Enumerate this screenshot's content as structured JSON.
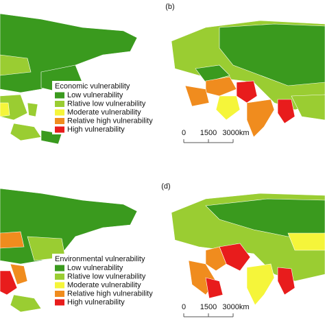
{
  "panels": [
    {
      "label": "(b)",
      "legend": {
        "title": "Economic vulnerability",
        "items": [
          {
            "name": "Low vulnerability",
            "color": "#3a9a1e"
          },
          {
            "name": "Rlative low vulnerability",
            "color": "#9acd32"
          },
          {
            "name": "Moderate vulnerability",
            "color": "#f5f53a"
          },
          {
            "name": "Relative high vulnerability",
            "color": "#f08c1e"
          },
          {
            "name": "High vulnerability",
            "color": "#e81c1c"
          }
        ]
      },
      "scale": [
        "0",
        "1500",
        "3000km"
      ]
    },
    {
      "label": "(d)",
      "legend": {
        "title": "Environmental vulnerability",
        "items": [
          {
            "name": "Low vulnerability",
            "color": "#3a9a1e"
          },
          {
            "name": "Rlative low vulnerability",
            "color": "#9acd32"
          },
          {
            "name": "Moderate vulnerability",
            "color": "#f5f53a"
          },
          {
            "name": "Relative high vulnerability",
            "color": "#f08c1e"
          },
          {
            "name": "High vulnerability",
            "color": "#e81c1c"
          }
        ]
      },
      "scale": [
        "0",
        "1500",
        "3000km"
      ]
    }
  ]
}
